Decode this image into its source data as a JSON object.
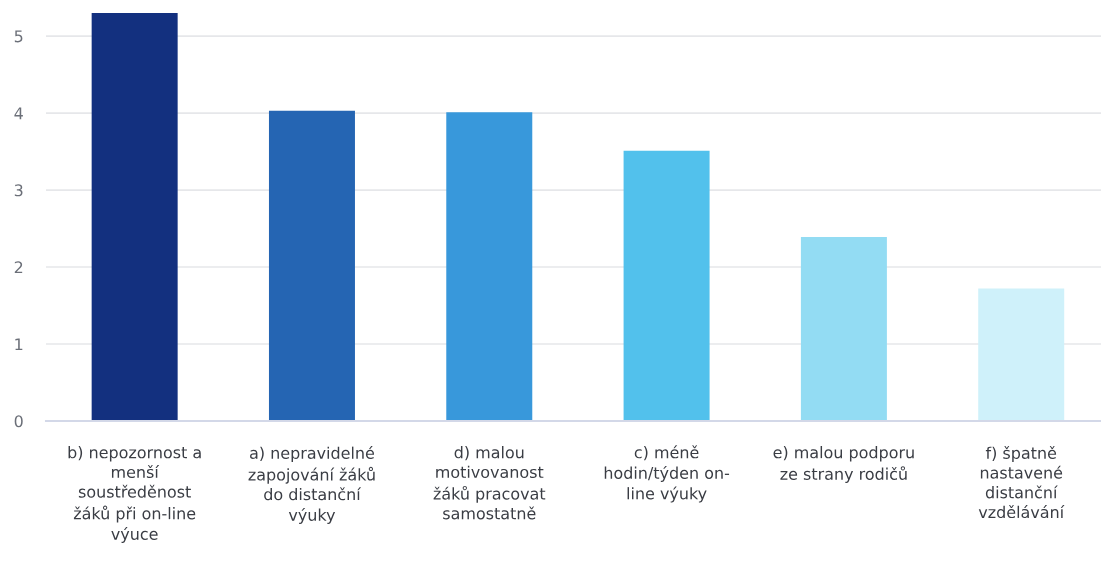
{
  "chart_data": {
    "type": "bar",
    "categories": [
      "b) nepozornost a\nmenší\nsoustředěnost\nžáků při on-line\nvýuce",
      "a) nepravidelné\nzapojování žáků\ndo distanční\nvýuky",
      "d) malou\nmotivovanost\nžáků pracovat\nsamostatně",
      "c) méně\nhodin/týden on-\nline výuky",
      "e) malou podporu\nze strany rodičů",
      "f) špatně\nnastavené\ndistanční\nvzdělávání"
    ],
    "values": [
      5.3,
      4.03,
      4.01,
      3.51,
      2.39,
      1.72
    ],
    "colors": [
      "#13307f",
      "#2565b3",
      "#3898db",
      "#52c1ec",
      "#93dcf3",
      "#cff1fa"
    ],
    "ylim": [
      0,
      5.3
    ],
    "yticks": [
      0,
      1,
      2,
      3,
      4,
      5
    ],
    "grid": "y",
    "legend": false
  }
}
